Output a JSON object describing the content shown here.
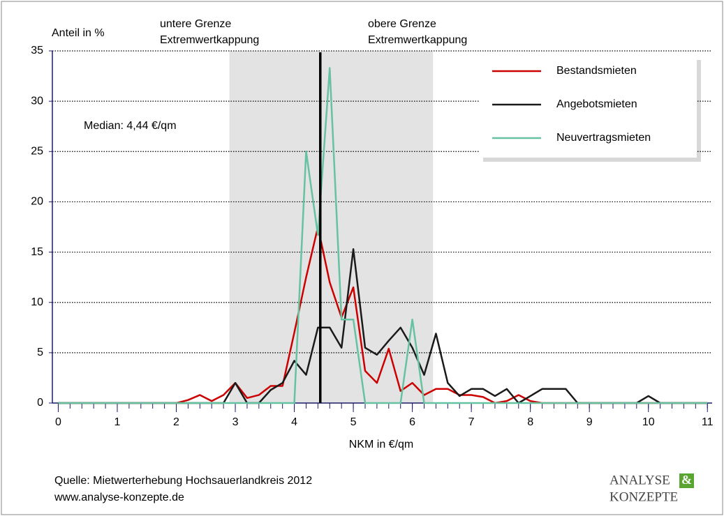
{
  "chart_data": {
    "type": "line",
    "ylabel": "Anteil in %",
    "xlabel": "NKM in €/qm",
    "annotations": [
      "untere Grenze",
      "Extremwertkappung",
      "obere Grenze",
      "Extremwertkappung"
    ],
    "median_label": "Median: 4,44 €/qm",
    "median_value": 4.44,
    "shade_range": [
      2.9,
      6.35
    ],
    "source": [
      "Quelle: Mietwerterhebung Hochsauerlandkreis 2012",
      "www.analyse-konzepte.de"
    ],
    "logo": [
      "ANALYSE",
      "&",
      "KONZEPTE"
    ],
    "xlim": [
      -0.1,
      11.08
    ],
    "ylim": [
      0,
      35
    ],
    "xticks": [
      0,
      1,
      2,
      3,
      4,
      5,
      6,
      7,
      8,
      9,
      10,
      11
    ],
    "yticks": [
      0,
      5,
      10,
      15,
      20,
      25,
      30,
      35
    ],
    "grid": true,
    "legend": "upper right",
    "x": [
      0,
      0.2,
      0.4,
      0.6,
      0.8,
      1,
      1.2,
      1.4,
      1.6,
      1.8,
      2,
      2.2,
      2.4,
      2.6,
      2.8,
      3,
      3.2,
      3.4,
      3.6,
      3.8,
      4,
      4.2,
      4.4,
      4.6,
      4.8,
      5,
      5.2,
      5.4,
      5.6,
      5.8,
      6,
      6.2,
      6.4,
      6.6,
      6.8,
      7,
      7.2,
      7.4,
      7.6,
      7.8,
      8,
      8.2,
      8.4,
      8.6,
      8.8,
      9,
      9.2,
      9.4,
      9.6,
      9.8,
      10,
      10.2,
      10.4,
      10.6,
      10.8,
      11
    ],
    "series": [
      {
        "name": "Bestandsmieten",
        "color": "#cc0000",
        "values": [
          0,
          0,
          0,
          0,
          0,
          0,
          0,
          0,
          0,
          0,
          0,
          0.3,
          0.8,
          0.2,
          0.8,
          2,
          0.5,
          0.8,
          1.7,
          1.7,
          7,
          12.5,
          17.5,
          12,
          8.5,
          11.5,
          3.2,
          2,
          5.4,
          1.2,
          2,
          0.8,
          1.4,
          1.4,
          0.8,
          0.8,
          0.6,
          0,
          0.2,
          0.8,
          0.2,
          0,
          0,
          0,
          0,
          0,
          0,
          0,
          0,
          0,
          0,
          0,
          0,
          0,
          0,
          0
        ]
      },
      {
        "name": "Angebotsmieten",
        "color": "#1a1a1a",
        "values": [
          0,
          0,
          0,
          0,
          0,
          0,
          0,
          0,
          0,
          0,
          0,
          0,
          0,
          0,
          0,
          2,
          0,
          0,
          1.3,
          2,
          4.2,
          2.8,
          7.5,
          7.5,
          5.5,
          15.3,
          5.5,
          4.8,
          6.2,
          7.5,
          5.5,
          2.8,
          6.9,
          2,
          0.7,
          1.4,
          1.4,
          0.7,
          1.4,
          0,
          0.7,
          1.4,
          1.4,
          1.4,
          0,
          0,
          0,
          0,
          0,
          0,
          0.7,
          0,
          0,
          0,
          0,
          0
        ]
      },
      {
        "name": "Neuvertragsmieten",
        "color": "#66c2a0",
        "values": [
          0,
          0,
          0,
          0,
          0,
          0,
          0,
          0,
          0,
          0,
          0,
          0,
          0,
          0,
          0,
          0,
          0,
          0,
          0,
          0,
          0,
          25,
          16.7,
          33.3,
          8.3,
          8.3,
          0,
          0,
          0,
          0,
          8.3,
          0,
          0,
          0,
          0,
          0,
          0,
          0,
          0,
          0,
          0,
          0,
          0,
          0,
          0,
          0,
          0,
          0,
          0,
          0,
          0,
          0,
          0,
          0,
          0,
          0
        ]
      }
    ]
  }
}
